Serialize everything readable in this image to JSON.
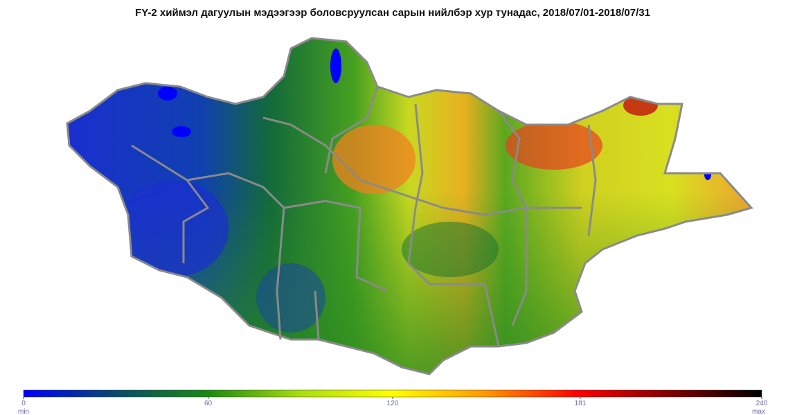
{
  "title": "FY-2 хиймэл дагуулын мэдээгээр боловсруулсан сарын нийлбэр хур тунадас, 2018/07/01-2018/07/31",
  "colorbar": {
    "ticks": [
      0,
      60,
      120,
      181,
      240
    ],
    "min_label": "min",
    "max_label": "max",
    "colors": [
      "#0000ff",
      "#0a4a6a",
      "#1a8a10",
      "#aadd10",
      "#ffff00",
      "#ff9900",
      "#ff0000",
      "#800000",
      "#000000"
    ]
  }
}
